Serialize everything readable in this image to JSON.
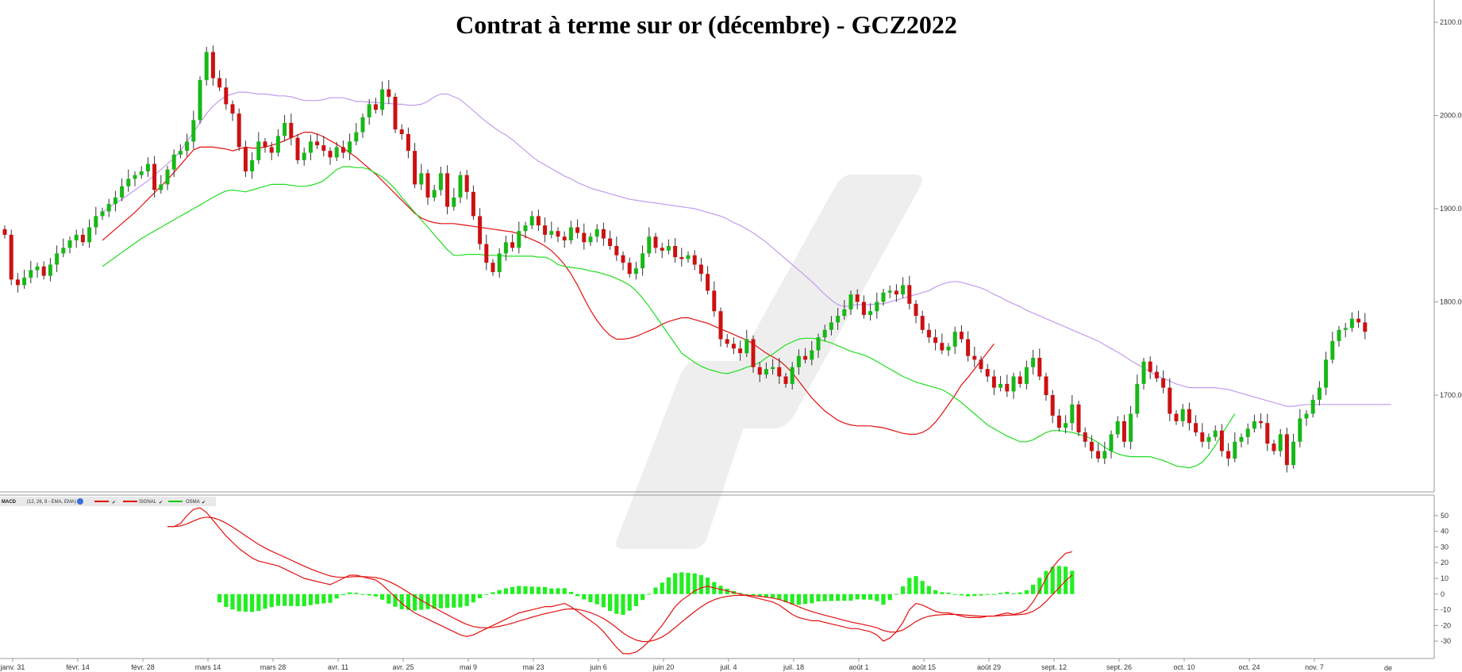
{
  "chart_data": {
    "type": "candlestick",
    "title": "Contrat à terme sur or (décembre) - GCZ2022",
    "price_axis": {
      "ticks": [
        "2100.00",
        "2000.00",
        "1900.00",
        "1800.00",
        "1700.00"
      ],
      "ylim": [
        1603,
        2117
      ]
    },
    "x_ticks": [
      "janv. 31",
      "févr. 14",
      "févr. 28",
      "mars 14",
      "mars 28",
      "avr. 11",
      "avr. 25",
      "mai 9",
      "mai 23",
      "juin 6",
      "juin 20",
      "juil. 4",
      "juil. 18",
      "août 1",
      "août 15",
      "août 29",
      "sept. 12",
      "sept. 26",
      "oct. 10",
      "oct. 24",
      "nov. 7"
    ],
    "x_ticks_index": [
      0,
      10,
      20,
      30,
      40,
      50,
      60,
      70,
      80,
      90,
      100,
      110,
      120,
      130,
      140,
      150,
      160,
      170,
      180,
      190,
      200
    ],
    "price_close": [
      1872,
      1824,
      1818,
      1826,
      1834,
      1838,
      1828,
      1840,
      1852,
      1858,
      1866,
      1872,
      1864,
      1880,
      1892,
      1897,
      1905,
      1912,
      1924,
      1932,
      1936,
      1940,
      1948,
      1920,
      1926,
      1942,
      1958,
      1962,
      1972,
      1995,
      2038,
      2068,
      2040,
      2030,
      2012,
      2002,
      1966,
      1940,
      1952,
      1972,
      1966,
      1960,
      1978,
      1992,
      1976,
      1952,
      1960,
      1972,
      1968,
      1962,
      1955,
      1966,
      1960,
      1972,
      1982,
      1998,
      2012,
      2006,
      2028,
      2020,
      1985,
      1980,
      1962,
      1926,
      1938,
      1912,
      1920,
      1938,
      1902,
      1912,
      1936,
      1918,
      1892,
      1862,
      1842,
      1832,
      1852,
      1864,
      1858,
      1876,
      1882,
      1892,
      1882,
      1872,
      1876,
      1870,
      1866,
      1880,
      1874,
      1864,
      1870,
      1878,
      1868,
      1860,
      1850,
      1842,
      1830,
      1836,
      1852,
      1870,
      1858,
      1855,
      1860,
      1848,
      1846,
      1850,
      1840,
      1830,
      1812,
      1790,
      1760,
      1755,
      1750,
      1745,
      1760,
      1730,
      1722,
      1728,
      1730,
      1720,
      1712,
      1730,
      1742,
      1738,
      1748,
      1762,
      1770,
      1778,
      1785,
      1792,
      1808,
      1800,
      1786,
      1790,
      1800,
      1810,
      1812,
      1808,
      1818,
      1798,
      1785,
      1770,
      1762,
      1756,
      1748,
      1752,
      1768,
      1760,
      1742,
      1738,
      1728,
      1720,
      1708,
      1712,
      1704,
      1720,
      1712,
      1730,
      1740,
      1720,
      1700,
      1678,
      1665,
      1670,
      1690,
      1660,
      1650,
      1640,
      1632,
      1640,
      1658,
      1672,
      1650,
      1680,
      1712,
      1736,
      1725,
      1718,
      1708,
      1680,
      1672,
      1685,
      1670,
      1660,
      1650,
      1655,
      1662,
      1640,
      1632,
      1650,
      1655,
      1664,
      1672,
      1670,
      1648,
      1640,
      1658,
      1625,
      1650,
      1675,
      1680,
      1695,
      1708,
      1738,
      1758,
      1770,
      1772,
      1782,
      1778,
      1768
    ],
    "sma20": [
      1896,
      1901,
      1906,
      1910,
      1915,
      1920,
      1925,
      1930,
      1936,
      1942,
      1948,
      1954,
      1962,
      1972,
      1982,
      1992,
      2002,
      2010,
      2016,
      2021,
      2023,
      2025,
      2025,
      2024,
      2023,
      2023,
      2022,
      2021,
      2021,
      2020,
      2018,
      2016,
      2016,
      2016,
      2017,
      2019,
      2019,
      2019,
      2017,
      2015,
      2015,
      2014,
      2014,
      2013,
      2013,
      2012,
      2012,
      2011,
      2011,
      2012,
      2015,
      2020,
      2023,
      2023,
      2020,
      2017,
      2011,
      2005,
      1999,
      1993,
      1988,
      1983,
      1979,
      1974,
      1968,
      1962,
      1956,
      1951,
      1947,
      1943,
      1939,
      1935,
      1932,
      1928,
      1925,
      1922,
      1920,
      1918,
      1916,
      1914,
      1912,
      1910,
      1909,
      1908,
      1907,
      1906,
      1905,
      1904,
      1903,
      1902,
      1901,
      1900,
      1898,
      1896,
      1894,
      1892,
      1889,
      1885,
      1882,
      1878,
      1874,
      1869,
      1864,
      1858,
      1852,
      1846,
      1840,
      1834,
      1828,
      1822,
      1815,
      1808,
      1802,
      1797,
      1795,
      1796,
      1797,
      1797,
      1797,
      1798,
      1798,
      1800,
      1802,
      1804,
      1806,
      1808,
      1810,
      1812,
      1816,
      1819,
      1821,
      1822,
      1821,
      1819,
      1817,
      1815,
      1812,
      1808,
      1805,
      1801,
      1798,
      1795,
      1791,
      1788,
      1785,
      1782,
      1779,
      1776,
      1773,
      1770,
      1767,
      1764,
      1761,
      1758,
      1754,
      1750,
      1746,
      1742,
      1737,
      1733,
      1729,
      1725,
      1721,
      1718,
      1715,
      1712,
      1710,
      1708,
      1708,
      1708,
      1708,
      1708,
      1707,
      1706,
      1704,
      1702,
      1700,
      1698,
      1696,
      1694,
      1692,
      1690,
      1688,
      1688,
      1689,
      1690,
      1690,
      1690,
      1690,
      1690,
      1690,
      1690,
      1690,
      1690,
      1690,
      1690,
      1690,
      1690,
      1690
    ],
    "ema_red": [
      1866,
      1872,
      1878,
      1884,
      1890,
      1896,
      1903,
      1910,
      1917,
      1924,
      1931,
      1939,
      1947,
      1955,
      1963,
      1966,
      1966,
      1966,
      1965,
      1964,
      1962,
      1964,
      1966,
      1965,
      1965,
      1966,
      1968,
      1970,
      1973,
      1976,
      1979,
      1982,
      1982,
      1980,
      1977,
      1973,
      1969,
      1965,
      1960,
      1955,
      1949,
      1943,
      1937,
      1930,
      1923,
      1916,
      1909,
      1902,
      1895,
      1890,
      1887,
      1885,
      1884,
      1884,
      1884,
      1883,
      1882,
      1881,
      1880,
      1879,
      1878,
      1877,
      1876,
      1875,
      1873,
      1870,
      1867,
      1864,
      1860,
      1855,
      1848,
      1840,
      1830,
      1818,
      1804,
      1791,
      1780,
      1771,
      1764,
      1760,
      1760,
      1761,
      1763,
      1766,
      1769,
      1772,
      1776,
      1779,
      1781,
      1783,
      1783,
      1781,
      1779,
      1777,
      1774,
      1771,
      1768,
      1765,
      1762,
      1759,
      1755,
      1750,
      1745,
      1741,
      1737,
      1731,
      1724,
      1715,
      1706,
      1697,
      1690,
      1683,
      1678,
      1673,
      1670,
      1668,
      1667,
      1667,
      1667,
      1666,
      1665,
      1663,
      1661,
      1659,
      1658,
      1658,
      1660,
      1664,
      1671,
      1680,
      1690,
      1700,
      1711,
      1719,
      1728,
      1737,
      1746,
      1755
    ],
    "ema_green": [
      1838,
      1843,
      1848,
      1853,
      1858,
      1863,
      1868,
      1872,
      1876,
      1880,
      1884,
      1888,
      1892,
      1896,
      1900,
      1904,
      1908,
      1912,
      1916,
      1919,
      1920,
      1919,
      1918,
      1920,
      1922,
      1924,
      1926,
      1926,
      1926,
      1925,
      1924,
      1924,
      1925,
      1927,
      1930,
      1936,
      1942,
      1945,
      1945,
      1944,
      1944,
      1942,
      1938,
      1934,
      1928,
      1921,
      1912,
      1904,
      1896,
      1888,
      1880,
      1872,
      1864,
      1856,
      1850,
      1850,
      1851,
      1851,
      1851,
      1850,
      1850,
      1850,
      1849,
      1849,
      1849,
      1849,
      1849,
      1848,
      1848,
      1845,
      1840,
      1838,
      1837,
      1836,
      1835,
      1833,
      1832,
      1830,
      1828,
      1825,
      1822,
      1818,
      1812,
      1804,
      1795,
      1785,
      1775,
      1765,
      1755,
      1745,
      1740,
      1735,
      1731,
      1728,
      1726,
      1724,
      1723,
      1725,
      1727,
      1730,
      1732,
      1735,
      1740,
      1744,
      1749,
      1754,
      1757,
      1760,
      1761,
      1761,
      1760,
      1758,
      1756,
      1753,
      1750,
      1747,
      1745,
      1743,
      1740,
      1736,
      1732,
      1728,
      1724,
      1720,
      1717,
      1714,
      1712,
      1710,
      1708,
      1706,
      1702,
      1697,
      1692,
      1686,
      1680,
      1674,
      1668,
      1664,
      1660,
      1656,
      1653,
      1650,
      1650,
      1652,
      1656,
      1660,
      1662,
      1662,
      1661,
      1660,
      1658,
      1656,
      1653,
      1649,
      1644,
      1640,
      1637,
      1635,
      1634,
      1634,
      1634,
      1634,
      1632,
      1630,
      1627,
      1624,
      1623,
      1622,
      1624,
      1628,
      1636,
      1646,
      1658,
      1669,
      1680
    ],
    "macd_panel": {
      "legend": [
        "MACD",
        "(12, 26, 9 - EMA, EMA)",
        "SIGNAL",
        "OSMA"
      ],
      "ticks": [
        "50",
        "40",
        "30",
        "20",
        "10",
        "0",
        "-10",
        "-20",
        "-30"
      ],
      "ylim": [
        -35,
        55
      ],
      "macd": [
        43,
        43,
        45,
        50,
        54,
        55,
        52,
        47,
        42,
        37,
        33,
        29,
        26,
        23,
        21,
        20,
        19,
        18,
        16,
        14,
        12,
        10,
        9,
        8,
        7,
        6,
        8,
        10,
        12,
        12,
        11,
        10,
        9,
        6,
        2,
        -2,
        -6,
        -9,
        -12,
        -14,
        -16,
        -18,
        -20,
        -22,
        -24,
        -26,
        -27,
        -26,
        -24,
        -22,
        -20,
        -18,
        -16,
        -14,
        -12,
        -11,
        -10,
        -9,
        -8,
        -8,
        -7,
        -6,
        -8,
        -11,
        -14,
        -17,
        -20,
        -24,
        -29,
        -34,
        -38,
        -38,
        -37,
        -34,
        -30,
        -25,
        -20,
        -14,
        -8,
        -4,
        -1,
        2,
        4,
        5,
        4,
        3,
        2,
        1,
        0,
        -1,
        -2,
        -3,
        -4,
        -5,
        -7,
        -10,
        -13,
        -15,
        -16,
        -17,
        -17,
        -18,
        -19,
        -20,
        -21,
        -22,
        -22,
        -23,
        -24,
        -26,
        -30,
        -28,
        -24,
        -18,
        -10,
        -6,
        -7,
        -9,
        -11,
        -12,
        -12,
        -13,
        -14,
        -15,
        -15,
        -15,
        -14,
        -14,
        -13,
        -12,
        -13,
        -12,
        -10,
        -5,
        2,
        10,
        17,
        22,
        26,
        27
      ]
    }
  }
}
